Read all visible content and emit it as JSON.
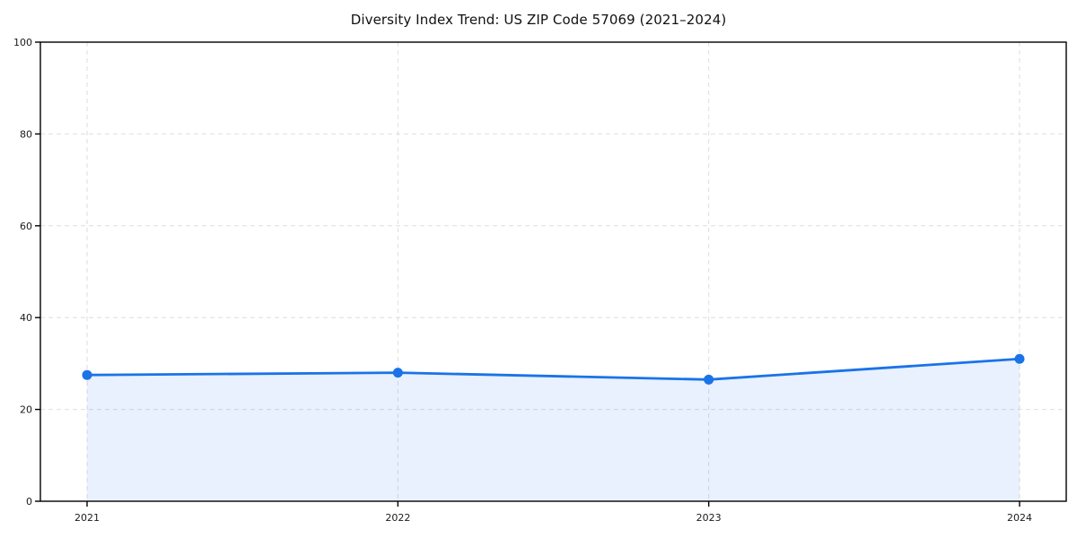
{
  "title": "Diversity Index Trend: US ZIP Code 57069 (2021–2024)",
  "colors": {
    "line": "#1a73e8",
    "marker": "#1a73e8",
    "area": "rgba(26,115,232,0.10)",
    "grid": "#dedede",
    "frame": "#000000",
    "text": "#1a1a1a",
    "background": "#ffffff"
  },
  "chart_data": {
    "type": "line",
    "title": "Diversity Index Trend: US ZIP Code 57069 (2021–2024)",
    "categories": [
      "2021",
      "2022",
      "2023",
      "2024"
    ],
    "x": [
      2021,
      2022,
      2023,
      2024
    ],
    "series": [
      {
        "name": "Diversity Index",
        "values": [
          27.5,
          28,
          26.5,
          31
        ]
      }
    ],
    "xlabel": "",
    "ylabel": "",
    "ylim": [
      0,
      100
    ],
    "yticks": [
      0,
      20,
      40,
      60,
      80,
      100
    ],
    "grid": true,
    "grid_style": "dashed",
    "legend_position": "none",
    "area_fill": true,
    "marker": "circle"
  }
}
